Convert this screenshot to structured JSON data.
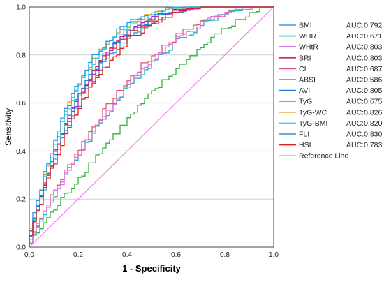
{
  "chart_data": {
    "type": "line",
    "title": "",
    "xlabel": "1 - Specificity",
    "ylabel": "Sensitivity",
    "xlim": [
      0,
      1
    ],
    "ylim": [
      0,
      1
    ],
    "ticks": [
      "0.0",
      "0.2",
      "0.4",
      "0.6",
      "0.8",
      "1.0"
    ],
    "grid": "horizontal",
    "legend_position": "right",
    "series": [
      {
        "name": "BMI",
        "auc_label": "AUC:0.792",
        "color": "#3a9fd6",
        "auc": 0.792
      },
      {
        "name": "WHR",
        "auc_label": "AUC:0.671",
        "color": "#21b3b5",
        "auc": 0.671
      },
      {
        "name": "WHtR",
        "auc_label": "AUC:0.803",
        "color": "#c21fbe",
        "auc": 0.803
      },
      {
        "name": "BRI",
        "auc_label": "AUC:0.803",
        "color": "#d6293a",
        "auc": 0.803
      },
      {
        "name": "CI",
        "auc_label": "AUC:0.687",
        "color": "#e0596a",
        "auc": 0.687
      },
      {
        "name": "ABSI",
        "auc_label": "AUC:0.586",
        "color": "#2db43c",
        "auc": 0.586
      },
      {
        "name": "AVI",
        "auc_label": "AUC:0.805",
        "color": "#1f7fd1",
        "auc": 0.805
      },
      {
        "name": "TyG",
        "auc_label": "AUC:0.675",
        "color": "#e06fe0",
        "auc": 0.675
      },
      {
        "name": "TyG-WC",
        "auc_label": "AUC:0.826",
        "color": "#e8a21a",
        "auc": 0.826
      },
      {
        "name": "TyG-BMI",
        "auc_label": "AUC:0.820",
        "color": "#3fd4dd",
        "auc": 0.82
      },
      {
        "name": "FLI",
        "auc_label": "AUC:0.830",
        "color": "#1a9be8",
        "auc": 0.83
      },
      {
        "name": "HSI",
        "auc_label": "AUC:0.783",
        "color": "#e01f1f",
        "auc": 0.783
      }
    ],
    "reference_line": {
      "name": "Reference Line",
      "color": "#ee82ee",
      "points": [
        [
          0,
          0
        ],
        [
          1,
          1
        ]
      ]
    }
  }
}
